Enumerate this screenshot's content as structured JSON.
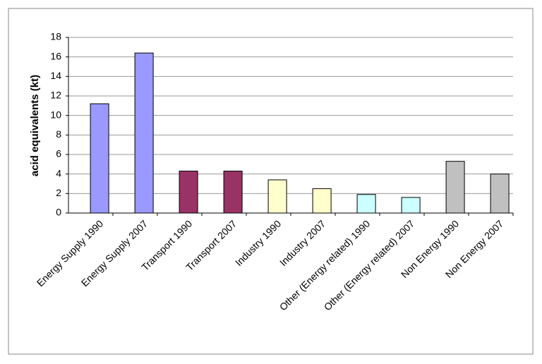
{
  "chart_data": {
    "type": "bar",
    "y_label": "acid equivalents (kt)",
    "categories": [
      "Energy Supply 1990",
      "Energy Supply 2007",
      "Transport 1990",
      "Transport 2007",
      "Industry 1990",
      "Industry 2007",
      "Other (Energy related) 1990",
      "Other (Energy related) 2007",
      "Non Energy 1990",
      "Non Energy 2007"
    ],
    "values": [
      11.2,
      16.4,
      4.3,
      4.3,
      3.4,
      2.5,
      1.9,
      1.6,
      5.3,
      4.0
    ],
    "colors": [
      "#9999ff",
      "#9999ff",
      "#993366",
      "#993366",
      "#ffffcc",
      "#ffffcc",
      "#ccffff",
      "#ccffff",
      "#c0c0c0",
      "#c0c0c0"
    ],
    "ylim": [
      0,
      18
    ],
    "yticks": [
      0,
      2,
      4,
      6,
      8,
      10,
      12,
      14,
      16,
      18
    ],
    "grid": true
  }
}
